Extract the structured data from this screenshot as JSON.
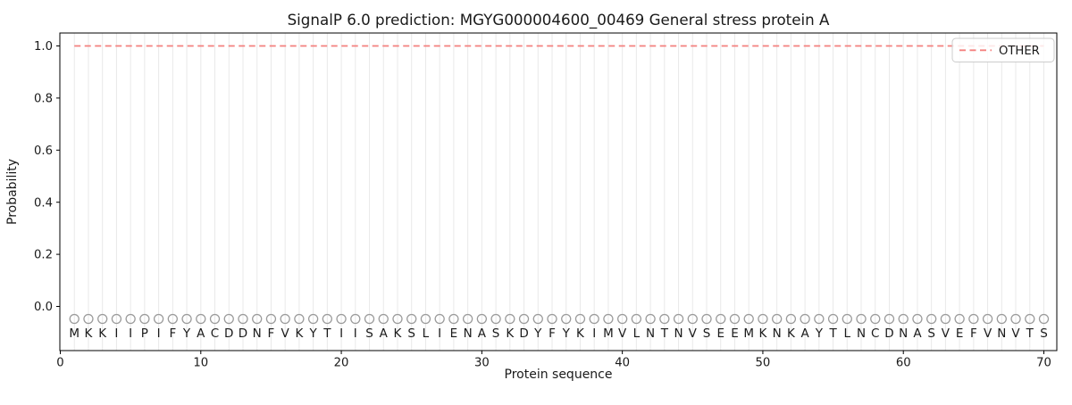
{
  "figure": {
    "title": "SignalP 6.0 prediction: MGYG000004600_00469 General stress protein A",
    "x_axis": {
      "label": "Protein sequence"
    },
    "y_axis": {
      "label": "Probability"
    },
    "legend": {
      "position": "upper-right",
      "entries": [
        {
          "label": "OTHER",
          "color": "#f4807e",
          "line_style": "dashed"
        }
      ]
    }
  },
  "chart_data": {
    "type": "line",
    "title": "SignalP 6.0 prediction: MGYG000004600_00469 General stress protein A",
    "xlabel": "Protein sequence",
    "ylabel": "Probability",
    "xlim": [
      0,
      71
    ],
    "ylim": [
      -0.17,
      1.05
    ],
    "xticks": [
      0,
      10,
      20,
      30,
      40,
      50,
      60,
      70
    ],
    "yticks": [
      0.0,
      0.2,
      0.4,
      0.6,
      0.8,
      1.0
    ],
    "grid": "vertical gridline at every residue position",
    "legend_position": "upper-right",
    "sequence": "MKKIIPIFYACDDNFVKYTIISAKSLIENASKDYFYKIMVLNTNVSEEMKNKAYTLNCDNASVEFVNVTS",
    "x": [
      1,
      2,
      3,
      4,
      5,
      6,
      7,
      8,
      9,
      10,
      11,
      12,
      13,
      14,
      15,
      16,
      17,
      18,
      19,
      20,
      21,
      22,
      23,
      24,
      25,
      26,
      27,
      28,
      29,
      30,
      31,
      32,
      33,
      34,
      35,
      36,
      37,
      38,
      39,
      40,
      41,
      42,
      43,
      44,
      45,
      46,
      47,
      48,
      49,
      50,
      51,
      52,
      53,
      54,
      55,
      56,
      57,
      58,
      59,
      60,
      61,
      62,
      63,
      64,
      65,
      66,
      67,
      68,
      69,
      70
    ],
    "series": [
      {
        "name": "OTHER",
        "style": "dashed",
        "color": "#f4807e",
        "values": [
          1,
          1,
          1,
          1,
          1,
          1,
          1,
          1,
          1,
          1,
          1,
          1,
          1,
          1,
          1,
          1,
          1,
          1,
          1,
          1,
          1,
          1,
          1,
          1,
          1,
          1,
          1,
          1,
          1,
          1,
          1,
          1,
          1,
          1,
          1,
          1,
          1,
          1,
          1,
          1,
          1,
          1,
          1,
          1,
          1,
          1,
          1,
          1,
          1,
          1,
          1,
          1,
          1,
          1,
          1,
          1,
          1,
          1,
          1,
          1,
          1,
          1,
          1,
          1,
          1,
          1,
          1,
          1,
          1,
          1
        ]
      }
    ],
    "colors": {
      "other_line": "#f4807e",
      "gridline": "#e9e9e9",
      "spine": "#000000",
      "residue_marker": "#9b9b9b",
      "residue_letter": "#2e2e2e",
      "legend_border": "#cccccc"
    }
  }
}
